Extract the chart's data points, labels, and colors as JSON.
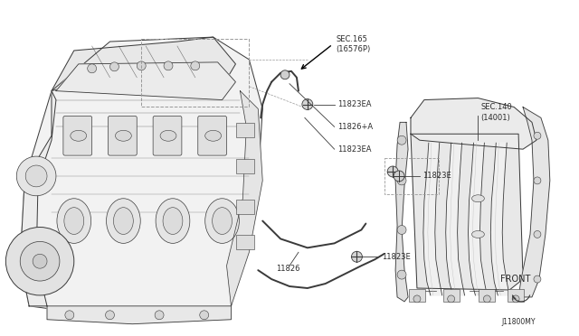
{
  "background_color": "#ffffff",
  "fig_width": 6.4,
  "fig_height": 3.72,
  "dpi": 100,
  "text_color": "#2a2a2a",
  "line_color": "#3a3a3a",
  "light_line_color": "#888888",
  "labels": {
    "sec165_line1": "SEC.165",
    "sec165_line2": "(16576P)",
    "l11823ea_top": "11823EA",
    "l11826a": "11826+A",
    "l11823ea_mid": "11823EA",
    "l11823e_mid": "11823E",
    "l11826": "11826",
    "l11823e_bot": "11823E",
    "sec140_line1": "SEC.140",
    "sec140_line2": "(14001)",
    "front": "FRONT",
    "diagram_id": "J11800MY"
  }
}
